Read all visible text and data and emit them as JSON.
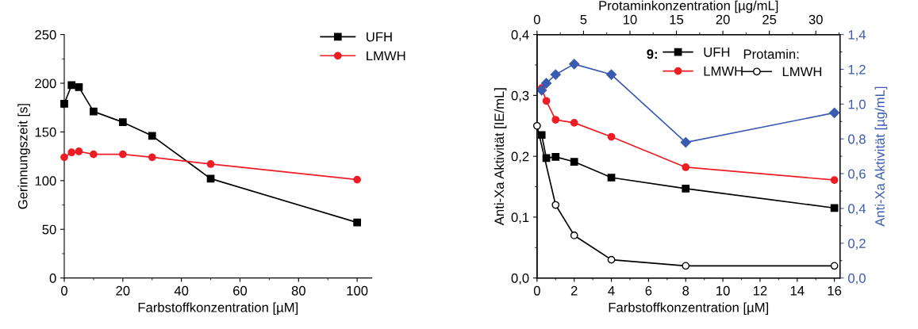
{
  "chart_data": [
    {
      "type": "line",
      "xlabel": "Farbstoffkonzentration [µM]",
      "ylabel": "Gerinnungszeit [s]",
      "xlim": [
        0,
        105
      ],
      "xticks": [
        0,
        20,
        40,
        60,
        80,
        100
      ],
      "ylim": [
        0,
        250
      ],
      "yticks": [
        0,
        50,
        100,
        150,
        200,
        250
      ],
      "legend": "top right",
      "grid": false,
      "series": [
        {
          "name": "UFH",
          "color": "#000000",
          "marker": "square",
          "x": [
            0,
            2.5,
            5,
            10,
            20,
            30,
            50,
            100
          ],
          "values": [
            179,
            198,
            196,
            171,
            160,
            146,
            102,
            57
          ]
        },
        {
          "name": "LMWH",
          "color": "#ee1c24",
          "marker": "circle",
          "x": [
            0,
            2.5,
            5,
            10,
            20,
            30,
            50,
            100
          ],
          "values": [
            124,
            129,
            130,
            127,
            127,
            124,
            117,
            101
          ]
        }
      ]
    },
    {
      "type": "line",
      "xlabel": "Farbstoffkonzentration [µM]",
      "ylabel": "Anti-Xa Aktivität [IE/mL]",
      "y2label": "Anti-Xa Aktivität [µg/mL]",
      "x2label": "Protaminkonzentration [µg/mL]",
      "xlim": [
        0,
        16.3
      ],
      "xticks": [
        0,
        2,
        4,
        6,
        8,
        10,
        12,
        14,
        16
      ],
      "x2lim": [
        0,
        32.6
      ],
      "x2ticks": [
        0,
        5,
        10,
        15,
        20,
        25,
        30
      ],
      "ylim": [
        0,
        0.4
      ],
      "yticks": [
        {
          "value": 0,
          "label": "0,0"
        },
        {
          "value": 0.1,
          "label": "0,1"
        },
        {
          "value": 0.2,
          "label": "0,2"
        },
        {
          "value": 0.3,
          "label": "0,3"
        },
        {
          "value": 0.4,
          "label": "0,4"
        }
      ],
      "y2lim": [
        0,
        1.4
      ],
      "y2ticks": [
        {
          "value": 0,
          "label": "0,0"
        },
        {
          "value": 0.2,
          "label": "0,2"
        },
        {
          "value": 0.4,
          "label": "0,4"
        },
        {
          "value": 0.6,
          "label": "0,6"
        },
        {
          "value": 0.8,
          "label": "0,8"
        },
        {
          "value": 1.0,
          "label": "1,0"
        },
        {
          "value": 1.2,
          "label": "1,2"
        },
        {
          "value": 1.4,
          "label": "1,4"
        }
      ],
      "legend": "top right",
      "grid": false,
      "annotations": [
        "9:",
        "Protamin:"
      ],
      "series": [
        {
          "name": "UFH",
          "color": "#000000",
          "marker": "square",
          "x": [
            0.25,
            0.5,
            1,
            2,
            4,
            8,
            16
          ],
          "values": [
            0.235,
            0.197,
            0.199,
            0.191,
            0.165,
            0.147,
            0.115
          ]
        },
        {
          "name": "LMWH",
          "color": "#ee1c24",
          "marker": "circle",
          "x": [
            0.25,
            0.5,
            1,
            2,
            4,
            8,
            16
          ],
          "values": [
            0.312,
            0.291,
            0.26,
            0.255,
            0.232,
            0.182,
            0.161
          ]
        },
        {
          "color": "#3a5bb0",
          "marker": "diamond",
          "axis": "y2",
          "x": [
            0.25,
            0.5,
            1,
            2,
            4,
            8,
            16
          ],
          "values": [
            1.08,
            1.12,
            1.17,
            1.23,
            1.17,
            0.78,
            0.95
          ]
        },
        {
          "name": "LMWH",
          "color": "#000000",
          "marker": "circle",
          "axis": "x2",
          "x": [
            0,
            2,
            4,
            8,
            16,
            32
          ],
          "values": [
            0.25,
            0.12,
            0.07,
            0.03,
            0.02,
            0.02
          ]
        }
      ]
    }
  ]
}
